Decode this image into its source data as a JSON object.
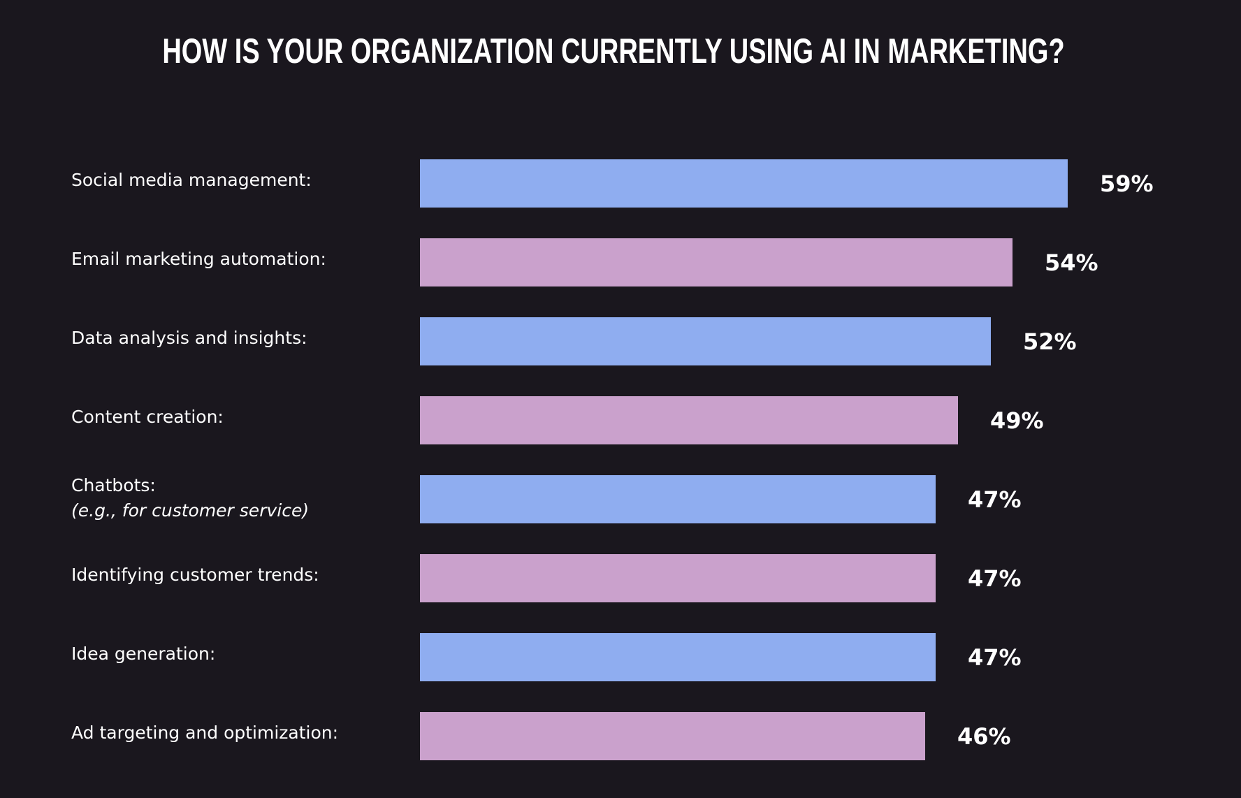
{
  "chart_data": {
    "type": "bar",
    "orientation": "horizontal",
    "title": "HOW IS YOUR ORGANIZATION CURRENTLY USING AI IN MARKETING?",
    "categories": [
      {
        "label": "Social media management:",
        "sublabel": ""
      },
      {
        "label": "Email marketing automation:",
        "sublabel": ""
      },
      {
        "label": "Data analysis and insights:",
        "sublabel": ""
      },
      {
        "label": "Content creation:",
        "sublabel": ""
      },
      {
        "label": "Chatbots:",
        "sublabel": "(e.g., for customer service)"
      },
      {
        "label": "Identifying customer trends:",
        "sublabel": ""
      },
      {
        "label": "Idea generation:",
        "sublabel": ""
      },
      {
        "label": "Ad targeting and optimization:",
        "sublabel": ""
      }
    ],
    "values": [
      59,
      54,
      52,
      49,
      47,
      47,
      47,
      46
    ],
    "value_labels": [
      "59%",
      "54%",
      "52%",
      "49%",
      "47%",
      "47%",
      "47%",
      "46%"
    ],
    "unit": "%",
    "xlim": [
      0,
      59
    ],
    "grid": false,
    "legend": "none",
    "bar_colors": [
      "#8fadf0",
      "#caa1cc"
    ]
  },
  "colors": {
    "background": "#1a171e",
    "text": "#ffffff"
  }
}
